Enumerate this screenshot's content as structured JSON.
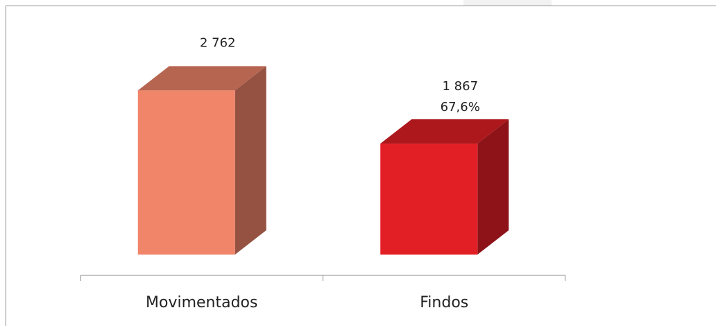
{
  "chart_data": {
    "type": "bar3d",
    "categories": [
      "Movimentados",
      "Findos"
    ],
    "values": [
      2762,
      1867
    ],
    "value_labels": [
      "2 762",
      "1 867"
    ],
    "annotation": "67,6%",
    "colors": [
      "#f0856a",
      "#e31f26"
    ],
    "ylim": [
      0,
      3000
    ]
  }
}
